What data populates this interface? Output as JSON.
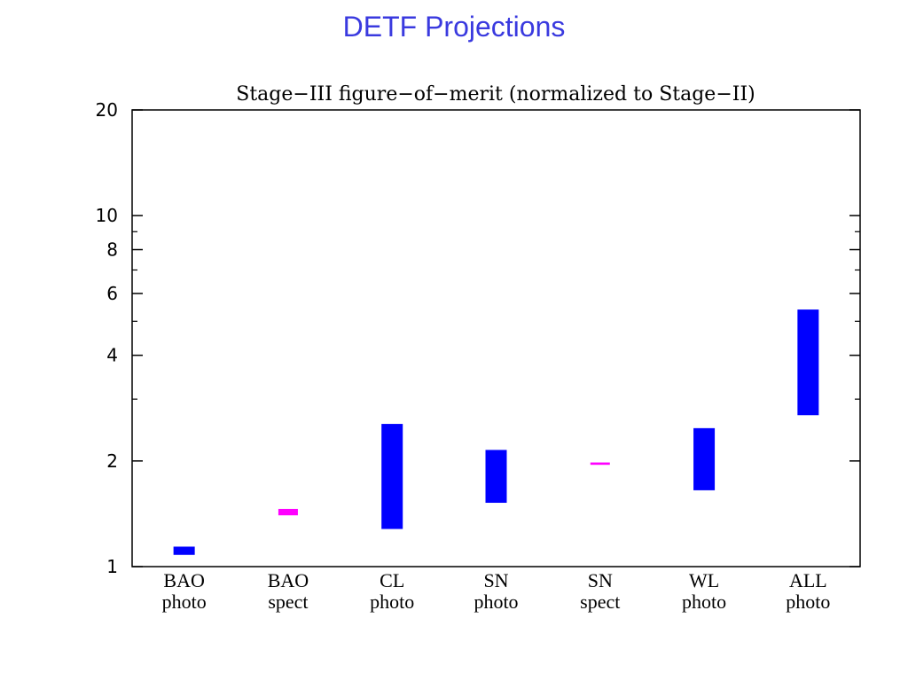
{
  "slide": {
    "title": "DETF Projections"
  },
  "chart_data": {
    "type": "bar",
    "title": "Stage−III figure−of−merit (normalized to Stage−II)",
    "xlabel": "",
    "ylabel": "",
    "y_scale": "log",
    "ylim": [
      1,
      20
    ],
    "y_major_ticks": [
      1,
      2,
      4,
      6,
      8,
      10,
      20
    ],
    "y_tick_labels": [
      "1",
      "2",
      "4",
      "6",
      "8",
      "10",
      "20"
    ],
    "y_minor_ticks": [
      3,
      5,
      7,
      9
    ],
    "grid": false,
    "categories": [
      {
        "line1": "BAO",
        "line2": "photo"
      },
      {
        "line1": "BAO",
        "line2": "spect"
      },
      {
        "line1": "CL",
        "line2": "photo"
      },
      {
        "line1": "SN",
        "line2": "photo"
      },
      {
        "line1": "SN",
        "line2": "spect"
      },
      {
        "line1": "WL",
        "line2": "photo"
      },
      {
        "line1": "ALL",
        "line2": "photo"
      }
    ],
    "ranges": [
      {
        "low": 1.08,
        "high": 1.14,
        "color": "#0000ff"
      },
      {
        "low": 1.4,
        "high": 1.46,
        "color": "#ff00ff"
      },
      {
        "low": 1.28,
        "high": 2.55,
        "color": "#0000ff"
      },
      {
        "low": 1.52,
        "high": 2.15,
        "color": "#0000ff"
      },
      {
        "low": 1.95,
        "high": 1.98,
        "color": "#ff00ff"
      },
      {
        "low": 1.65,
        "high": 2.48,
        "color": "#0000ff"
      },
      {
        "low": 2.7,
        "high": 5.4,
        "color": "#0000ff"
      }
    ]
  }
}
